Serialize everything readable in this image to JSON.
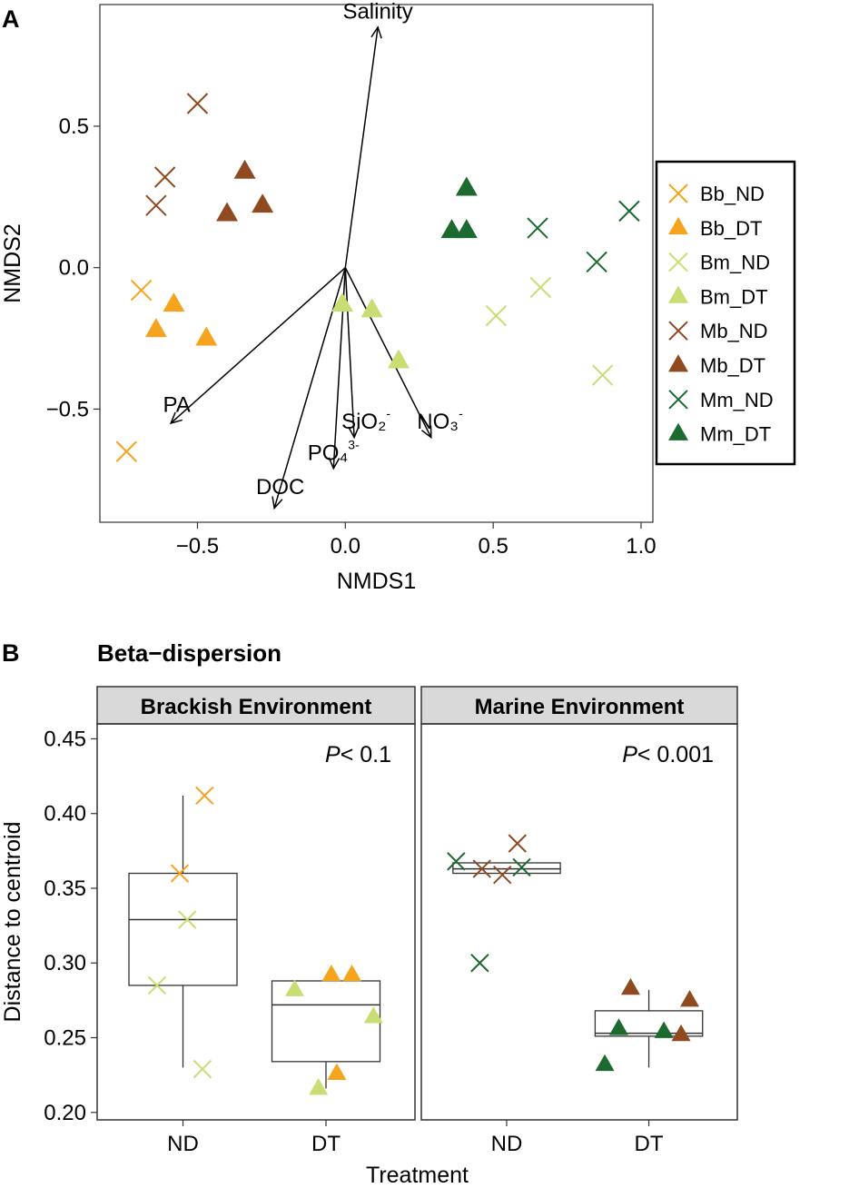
{
  "colors": {
    "Bb": "#F6A31E",
    "Bm": "#C8DE73",
    "Mb": "#8F4A1F",
    "Mm": "#1D6A31"
  },
  "chart_data": [
    {
      "panel": "A",
      "type": "scatter",
      "xlabel": "NMDS1",
      "ylabel": "NMDS2",
      "xlim": [
        -0.83,
        1.04
      ],
      "ylim": [
        -0.9,
        0.93
      ],
      "xticks": [
        -0.5,
        0.0,
        0.5,
        1.0
      ],
      "xtick_labels": [
        "−0.5",
        "0.0",
        "0.5",
        "1.0"
      ],
      "yticks": [
        0.5,
        0.0,
        -0.5
      ],
      "ytick_labels": [
        "0.5",
        "0.0",
        "−0.5"
      ],
      "legend_position": "right",
      "series": [
        {
          "name": "Bb_ND",
          "group": "Bb",
          "marker": "x",
          "points": [
            [
              -0.69,
              -0.08
            ],
            [
              -0.74,
              -0.65
            ]
          ]
        },
        {
          "name": "Bb_DT",
          "group": "Bb",
          "marker": "triangle",
          "points": [
            [
              -0.58,
              -0.13
            ],
            [
              -0.64,
              -0.22
            ],
            [
              -0.47,
              -0.25
            ]
          ]
        },
        {
          "name": "Bm_ND",
          "group": "Bm",
          "marker": "x",
          "points": [
            [
              0.51,
              -0.17
            ],
            [
              0.66,
              -0.07
            ],
            [
              0.87,
              -0.38
            ]
          ]
        },
        {
          "name": "Bm_DT",
          "group": "Bm",
          "marker": "triangle",
          "points": [
            [
              -0.01,
              -0.13
            ],
            [
              0.09,
              -0.15
            ],
            [
              0.18,
              -0.33
            ]
          ]
        },
        {
          "name": "Mb_ND",
          "group": "Mb",
          "marker": "x",
          "points": [
            [
              -0.5,
              0.58
            ],
            [
              -0.61,
              0.32
            ],
            [
              -0.64,
              0.22
            ]
          ]
        },
        {
          "name": "Mb_DT",
          "group": "Mb",
          "marker": "triangle",
          "points": [
            [
              -0.34,
              0.34
            ],
            [
              -0.28,
              0.22
            ],
            [
              -0.4,
              0.19
            ]
          ]
        },
        {
          "name": "Mm_ND",
          "group": "Mm",
          "marker": "x",
          "points": [
            [
              0.65,
              0.14
            ],
            [
              0.85,
              0.02
            ],
            [
              0.96,
              0.2
            ]
          ]
        },
        {
          "name": "Mm_DT",
          "group": "Mm",
          "marker": "triangle",
          "points": [
            [
              0.41,
              0.28
            ],
            [
              0.36,
              0.13
            ],
            [
              0.41,
              0.13
            ]
          ]
        }
      ],
      "vectors": [
        {
          "name": "Salinity",
          "end": [
            0.11,
            0.85
          ],
          "label_at": [
            0.11,
            0.88
          ],
          "label": "Salinity",
          "sup": ""
        },
        {
          "name": "PA",
          "end": [
            -0.59,
            -0.55
          ],
          "label_at": [
            -0.57,
            -0.51
          ],
          "label": "PA",
          "sup": ""
        },
        {
          "name": "DOC",
          "end": [
            -0.24,
            -0.85
          ],
          "label_at": [
            -0.22,
            -0.8
          ],
          "label": "DOC",
          "sup": ""
        },
        {
          "name": "PO4",
          "end": [
            -0.04,
            -0.71
          ],
          "label_at": [
            -0.04,
            -0.68
          ],
          "label": "PO₄",
          "sup": "3-"
        },
        {
          "name": "SiO2",
          "end": [
            0.03,
            -0.6
          ],
          "label_at": [
            0.07,
            -0.57
          ],
          "label": "SiO₂",
          "sup": "-"
        },
        {
          "name": "NO3",
          "end": [
            0.29,
            -0.6
          ],
          "label_at": [
            0.32,
            -0.57
          ],
          "label": "NO₃",
          "sup": "-"
        }
      ]
    },
    {
      "panel": "B",
      "type": "box",
      "title": "Beta−dispersion",
      "xlabel": "Treatment",
      "ylabel": "Distance to centroid",
      "ylim": [
        0.195,
        0.46
      ],
      "yticks": [
        0.2,
        0.25,
        0.3,
        0.35,
        0.4,
        0.45
      ],
      "ytick_labels": [
        "0.20",
        "0.25",
        "0.30",
        "0.35",
        "0.40",
        "0.45"
      ],
      "categories": [
        "ND",
        "DT"
      ],
      "facets": [
        {
          "name": "Brackish Environment",
          "p_text": "< 0.1",
          "boxes": [
            {
              "category": "ND",
              "min": 0.23,
              "q1": 0.285,
              "median": 0.329,
              "q3": 0.36,
              "max": 0.412
            },
            {
              "category": "DT",
              "min": 0.216,
              "q1": 0.234,
              "median": 0.272,
              "q3": 0.288,
              "max": 0.288
            }
          ],
          "points": [
            {
              "group": "Bb",
              "marker": "x",
              "category": "ND",
              "offset": 0.2,
              "y": 0.412
            },
            {
              "group": "Bb",
              "marker": "x",
              "category": "ND",
              "offset": -0.03,
              "y": 0.36
            },
            {
              "group": "Bm",
              "marker": "x",
              "category": "ND",
              "offset": 0.04,
              "y": 0.329
            },
            {
              "group": "Bm",
              "marker": "x",
              "category": "ND",
              "offset": -0.24,
              "y": 0.285
            },
            {
              "group": "Bm",
              "marker": "x",
              "category": "ND",
              "offset": 0.18,
              "y": 0.229
            },
            {
              "group": "Bb",
              "marker": "triangle",
              "category": "DT",
              "offset": 0.05,
              "y": 0.292
            },
            {
              "group": "Bb",
              "marker": "triangle",
              "category": "DT",
              "offset": 0.24,
              "y": 0.292
            },
            {
              "group": "Bm",
              "marker": "triangle",
              "category": "DT",
              "offset": -0.29,
              "y": 0.282
            },
            {
              "group": "Bm",
              "marker": "triangle",
              "category": "DT",
              "offset": 0.44,
              "y": 0.264
            },
            {
              "group": "Bb",
              "marker": "triangle",
              "category": "DT",
              "offset": 0.1,
              "y": 0.226
            },
            {
              "group": "Bm",
              "marker": "triangle",
              "category": "DT",
              "offset": -0.07,
              "y": 0.216
            }
          ]
        },
        {
          "name": "Marine Environment",
          "p_text": "< 0.001",
          "boxes": [
            {
              "category": "ND",
              "min": 0.36,
              "q1": 0.36,
              "median": 0.363,
              "q3": 0.367,
              "max": 0.367
            },
            {
              "category": "DT",
              "min": 0.23,
              "q1": 0.251,
              "median": 0.253,
              "q3": 0.268,
              "max": 0.282
            }
          ],
          "points": [
            {
              "group": "Mm",
              "marker": "x",
              "category": "ND",
              "offset": -0.47,
              "y": 0.368
            },
            {
              "group": "Mb",
              "marker": "x",
              "category": "ND",
              "offset": -0.23,
              "y": 0.363
            },
            {
              "group": "Mb",
              "marker": "x",
              "category": "ND",
              "offset": -0.04,
              "y": 0.359
            },
            {
              "group": "Mb",
              "marker": "x",
              "category": "ND",
              "offset": 0.1,
              "y": 0.38
            },
            {
              "group": "Mm",
              "marker": "x",
              "category": "ND",
              "offset": 0.14,
              "y": 0.364
            },
            {
              "group": "Mm",
              "marker": "x",
              "category": "ND",
              "offset": -0.25,
              "y": 0.3
            },
            {
              "group": "Mb",
              "marker": "triangle",
              "category": "DT",
              "offset": -0.17,
              "y": 0.283
            },
            {
              "group": "Mb",
              "marker": "triangle",
              "category": "DT",
              "offset": 0.38,
              "y": 0.275
            },
            {
              "group": "Mm",
              "marker": "triangle",
              "category": "DT",
              "offset": -0.28,
              "y": 0.256
            },
            {
              "group": "Mm",
              "marker": "triangle",
              "category": "DT",
              "offset": 0.14,
              "y": 0.254
            },
            {
              "group": "Mb",
              "marker": "triangle",
              "category": "DT",
              "offset": 0.3,
              "y": 0.252
            },
            {
              "group": "Mm",
              "marker": "triangle",
              "category": "DT",
              "offset": -0.41,
              "y": 0.232
            }
          ]
        }
      ]
    }
  ],
  "labels": {
    "panel_a": "A",
    "panel_b": "B",
    "p_symbol": "P"
  }
}
